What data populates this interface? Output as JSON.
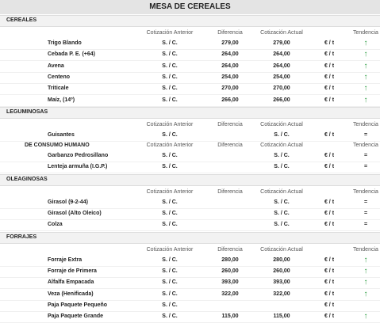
{
  "title": "MESA DE CEREALES",
  "sections": [
    {
      "name": "CEREALES",
      "blocks": [
        {
          "header": {
            "anterior": "Cotización Anterior",
            "diferencia": "Diferencia",
            "actual": "Cotización Actual",
            "tendencia": "Tendencia"
          },
          "rows": [
            {
              "name": "Trigo Blando",
              "anterior": "S. / C.",
              "diferencia": "279,00",
              "actual": "279,00",
              "unit": "€ / t",
              "trend": "↑"
            },
            {
              "name": "Cebada P. E. (+64)",
              "anterior": "S. / C.",
              "diferencia": "264,00",
              "actual": "264,00",
              "unit": "€ / t",
              "trend": "↑"
            },
            {
              "name": "Avena",
              "anterior": "S. / C.",
              "diferencia": "264,00",
              "actual": "264,00",
              "unit": "€ / t",
              "trend": "↑"
            },
            {
              "name": "Centeno",
              "anterior": "S. / C.",
              "diferencia": "254,00",
              "actual": "254,00",
              "unit": "€ / t",
              "trend": "↑"
            },
            {
              "name": "Triticale",
              "anterior": "S. / C.",
              "diferencia": "270,00",
              "actual": "270,00",
              "unit": "€ / t",
              "trend": "↑"
            },
            {
              "name": "Maíz, (14º)",
              "anterior": "S. / C.",
              "diferencia": "266,00",
              "actual": "266,00",
              "unit": "€ / t",
              "trend": "↑"
            }
          ]
        }
      ]
    },
    {
      "name": "LEGUMINOSAS",
      "blocks": [
        {
          "header": {
            "anterior": "Cotización Anterior",
            "diferencia": "Diferencia",
            "actual": "Cotización Actual",
            "tendencia": "Tendencia"
          },
          "rows": [
            {
              "name": "Guisantes",
              "anterior": "S. / C.",
              "diferencia": null,
              "actual": "S. / C.",
              "unit": "€ / t",
              "trend": "="
            }
          ]
        },
        {
          "label": "DE CONSUMO HUMANO",
          "header": {
            "anterior": "Cotización Anterior",
            "diferencia": "Diferencia",
            "actual": "Cotización Actual",
            "tendencia": "Tendencia"
          },
          "rows": [
            {
              "name": "Garbanzo Pedrosillano",
              "anterior": "S. / C.",
              "diferencia": null,
              "actual": "S. / C.",
              "unit": "€ / t",
              "trend": "="
            },
            {
              "name": "Lenteja armuña (I.G.P.)",
              "anterior": "S. / C.",
              "diferencia": null,
              "actual": "S. / C.",
              "unit": "€ / t",
              "trend": "="
            }
          ]
        }
      ]
    },
    {
      "name": "OLEAGINOSAS",
      "blocks": [
        {
          "header": {
            "anterior": "Cotización Anterior",
            "diferencia": "Diferencia",
            "actual": "Cotización Actual",
            "tendencia": "Tendencia"
          },
          "rows": [
            {
              "name": "Girasol (9-2-44)",
              "anterior": "S. / C.",
              "diferencia": null,
              "actual": "S. / C.",
              "unit": "€ / t",
              "trend": "="
            },
            {
              "name": "Girasol (Alto Oleico)",
              "anterior": "S. / C.",
              "diferencia": null,
              "actual": "S. / C.",
              "unit": "€ / t",
              "trend": "="
            },
            {
              "name": "Colza",
              "anterior": "S. / C.",
              "diferencia": null,
              "actual": "S. / C.",
              "unit": "€ / t",
              "trend": "="
            }
          ]
        }
      ]
    },
    {
      "name": "FORRAJES",
      "blocks": [
        {
          "header": {
            "anterior": "Cotización Anterior",
            "diferencia": "Diferencia",
            "actual": "Cotización Actual",
            "tendencia": "Tendencia"
          },
          "rows": [
            {
              "name": "Forraje Extra",
              "anterior": "S. / C.",
              "diferencia": "280,00",
              "actual": "280,00",
              "unit": "€ / t",
              "trend": "↑"
            },
            {
              "name": "Forraje de Primera",
              "anterior": "S. / C.",
              "diferencia": "260,00",
              "actual": "260,00",
              "unit": "€ / t",
              "trend": "↑"
            },
            {
              "name": "Alfalfa Empacada",
              "anterior": "S. / C.",
              "diferencia": "393,00",
              "actual": "393,00",
              "unit": "€ / t",
              "trend": "↑"
            },
            {
              "name": "Veza (Henificada)",
              "anterior": "S. / C.",
              "diferencia": "322,00",
              "actual": "322,00",
              "unit": "€ / t",
              "trend": "↑"
            },
            {
              "name": "Paja Paquete Pequeño",
              "anterior": "S. / C.",
              "diferencia": null,
              "actual": null,
              "unit": "€ / t",
              "trend": null
            },
            {
              "name": "Paja Paquete Grande",
              "anterior": "S. / C.",
              "diferencia": "115,00",
              "actual": "115,00",
              "unit": "€ / t",
              "trend": "↑"
            }
          ]
        }
      ]
    }
  ]
}
